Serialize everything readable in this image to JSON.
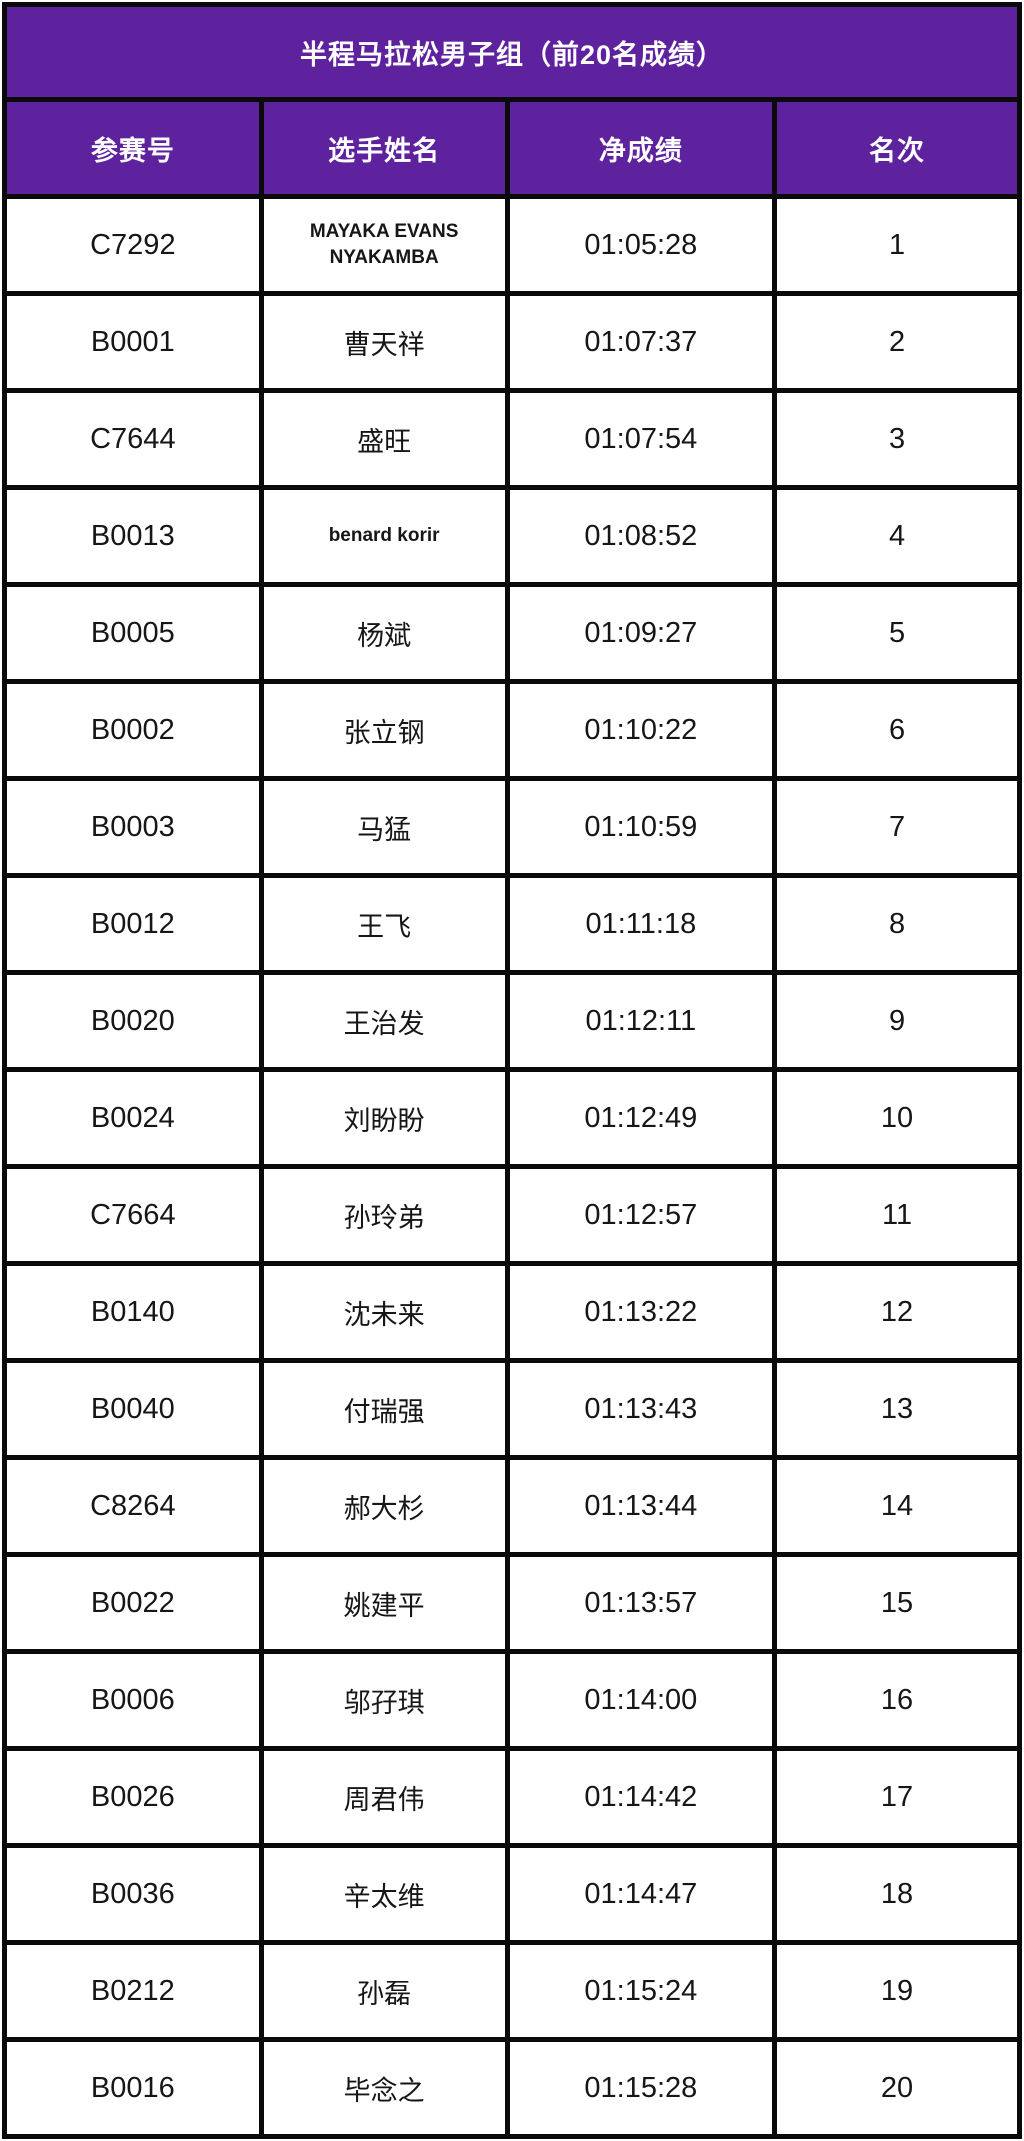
{
  "colors": {
    "purple": "#5E229E",
    "grid_line": "#0a0a0a",
    "cell_background": "#ffffff",
    "header_text": "#ffffff",
    "body_text": "#161616"
  },
  "table": {
    "title": "半程马拉松男子组（前20名成绩）",
    "columns": [
      "参赛号",
      "选手姓名",
      "净成绩",
      "名次"
    ],
    "rows": [
      {
        "bib": "C7292",
        "name": "MAYAKA EVANS NYAKAMBA",
        "time": "01:05:28",
        "rank": "1"
      },
      {
        "bib": "B0001",
        "name": "曹天祥",
        "time": "01:07:37",
        "rank": "2"
      },
      {
        "bib": "C7644",
        "name": "盛旺",
        "time": "01:07:54",
        "rank": "3"
      },
      {
        "bib": "B0013",
        "name": "benard korir",
        "time": "01:08:52",
        "rank": "4"
      },
      {
        "bib": "B0005",
        "name": "杨斌",
        "time": "01:09:27",
        "rank": "5"
      },
      {
        "bib": "B0002",
        "name": "张立钢",
        "time": "01:10:22",
        "rank": "6"
      },
      {
        "bib": "B0003",
        "name": "马猛",
        "time": "01:10:59",
        "rank": "7"
      },
      {
        "bib": "B0012",
        "name": "王飞",
        "time": "01:11:18",
        "rank": "8"
      },
      {
        "bib": "B0020",
        "name": "王治发",
        "time": "01:12:11",
        "rank": "9"
      },
      {
        "bib": "B0024",
        "name": "刘盼盼",
        "time": "01:12:49",
        "rank": "10"
      },
      {
        "bib": "C7664",
        "name": "孙玲弟",
        "time": "01:12:57",
        "rank": "11"
      },
      {
        "bib": "B0140",
        "name": "沈未来",
        "time": "01:13:22",
        "rank": "12"
      },
      {
        "bib": "B0040",
        "name": "付瑞强",
        "time": "01:13:43",
        "rank": "13"
      },
      {
        "bib": "C8264",
        "name": "郝大杉",
        "time": "01:13:44",
        "rank": "14"
      },
      {
        "bib": "B0022",
        "name": "姚建平",
        "time": "01:13:57",
        "rank": "15"
      },
      {
        "bib": "B0006",
        "name": "邬孖琪",
        "time": "01:14:00",
        "rank": "16"
      },
      {
        "bib": "B0026",
        "name": "周君伟",
        "time": "01:14:42",
        "rank": "17"
      },
      {
        "bib": "B0036",
        "name": "辛太维",
        "time": "01:14:47",
        "rank": "18"
      },
      {
        "bib": "B0212",
        "name": "孙磊",
        "time": "01:15:24",
        "rank": "19"
      },
      {
        "bib": "B0016",
        "name": "毕念之",
        "time": "01:15:28",
        "rank": "20"
      }
    ]
  }
}
